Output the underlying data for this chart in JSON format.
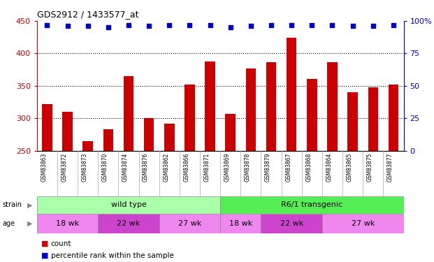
{
  "title": "GDS2912 / 1433577_at",
  "samples": [
    "GSM83863",
    "GSM83872",
    "GSM83873",
    "GSM83870",
    "GSM83874",
    "GSM83876",
    "GSM83862",
    "GSM83866",
    "GSM83871",
    "GSM83869",
    "GSM83878",
    "GSM83879",
    "GSM83867",
    "GSM83868",
    "GSM83864",
    "GSM83865",
    "GSM83875",
    "GSM83877"
  ],
  "counts": [
    322,
    310,
    265,
    283,
    365,
    300,
    292,
    352,
    388,
    307,
    377,
    386,
    424,
    361,
    386,
    340,
    348,
    352
  ],
  "percentiles": [
    97,
    96,
    96,
    95,
    97,
    96,
    97,
    97,
    97,
    95,
    96,
    97,
    97,
    97,
    97,
    96,
    96,
    97
  ],
  "bar_color": "#cc0000",
  "dot_color": "#0000cc",
  "ylim_left": [
    250,
    450
  ],
  "ylim_right": [
    0,
    100
  ],
  "yticks_left": [
    250,
    300,
    350,
    400,
    450
  ],
  "yticks_right": [
    0,
    25,
    50,
    75,
    100
  ],
  "ytick_right_labels": [
    "0",
    "25",
    "50",
    "75",
    "100%"
  ],
  "grid_values": [
    300,
    350,
    400
  ],
  "strain_groups": [
    {
      "label": "wild type",
      "start": 0,
      "end": 9,
      "color": "#aaffaa"
    },
    {
      "label": "R6/1 transgenic",
      "start": 9,
      "end": 18,
      "color": "#55ee55"
    }
  ],
  "age_groups": [
    {
      "label": "18 wk",
      "start": 0,
      "end": 3,
      "color": "#ee88ee"
    },
    {
      "label": "22 wk",
      "start": 3,
      "end": 6,
      "color": "#cc44cc"
    },
    {
      "label": "27 wk",
      "start": 6,
      "end": 9,
      "color": "#ee88ee"
    },
    {
      "label": "18 wk",
      "start": 9,
      "end": 11,
      "color": "#ee88ee"
    },
    {
      "label": "22 wk",
      "start": 11,
      "end": 14,
      "color": "#cc44cc"
    },
    {
      "label": "27 wk",
      "start": 14,
      "end": 18,
      "color": "#ee88ee"
    }
  ],
  "legend_count_color": "#cc0000",
  "legend_pct_color": "#0000cc",
  "axis_color_left": "#cc0000",
  "axis_color_right": "#0000cc",
  "plot_bg": "#ffffff",
  "xlabel_bg": "#c8c8c8",
  "bar_width": 0.5
}
